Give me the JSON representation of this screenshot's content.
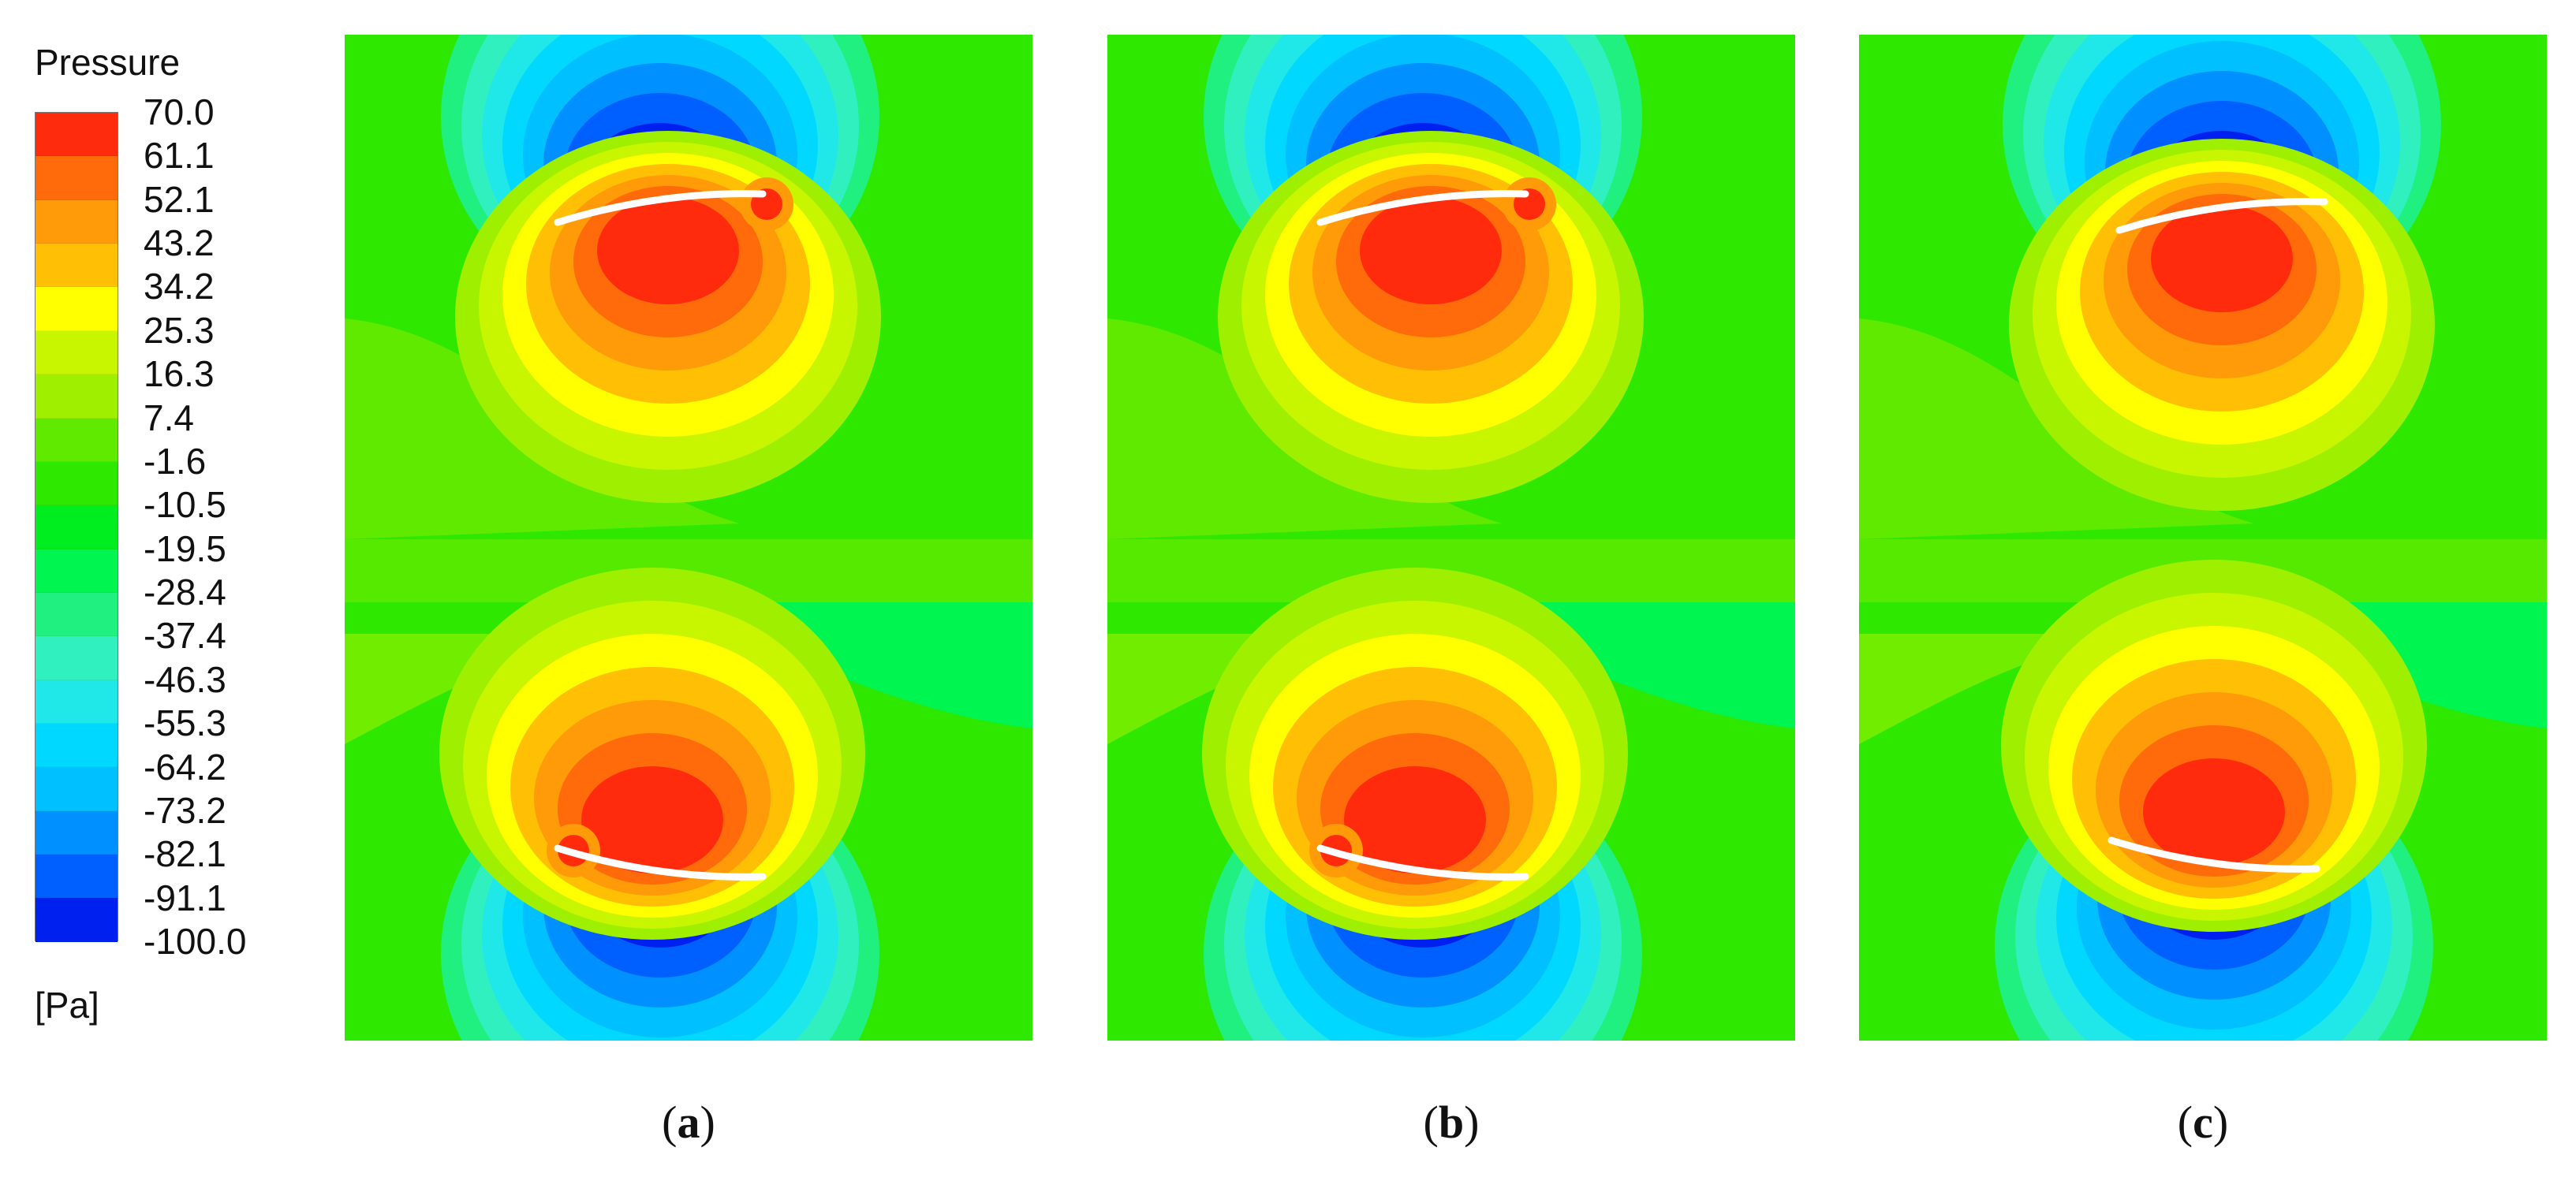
{
  "legend": {
    "title": "Pressure",
    "unit": "[Pa]",
    "ticks": [
      "70.0",
      "61.1",
      "52.1",
      "43.2",
      "34.2",
      "25.3",
      "16.3",
      "7.4",
      "-1.6",
      "-10.5",
      "-19.5",
      "-28.4",
      "-37.4",
      "-46.3",
      "-55.3",
      "-64.2",
      "-73.2",
      "-82.1",
      "-91.1",
      "-100.0"
    ],
    "colors": [
      "#ff2b0c",
      "#ff6a0a",
      "#ff9a08",
      "#ffbf05",
      "#ffff00",
      "#c8f500",
      "#9ef000",
      "#60ea00",
      "#2ee800",
      "#00ee20",
      "#00f550",
      "#20f080",
      "#30f0c0",
      "#20e8e8",
      "#00d8ff",
      "#00c0ff",
      "#0090ff",
      "#0060ff",
      "#0020f0"
    ]
  },
  "colors": {
    "background_field": "#2ee800",
    "red": "#ff2b0c",
    "blue": "#0020f0"
  },
  "panels": [
    {
      "id": "a",
      "label_open": "(",
      "label_letter": "a",
      "label_close": ")",
      "blade_color": "#ffffff"
    },
    {
      "id": "b",
      "label_open": "(",
      "label_letter": "b",
      "label_close": ")",
      "blade_color": "#ffffff"
    },
    {
      "id": "c",
      "label_open": "(",
      "label_letter": "c",
      "label_close": ")",
      "blade_color": "#ffffff"
    }
  ]
}
